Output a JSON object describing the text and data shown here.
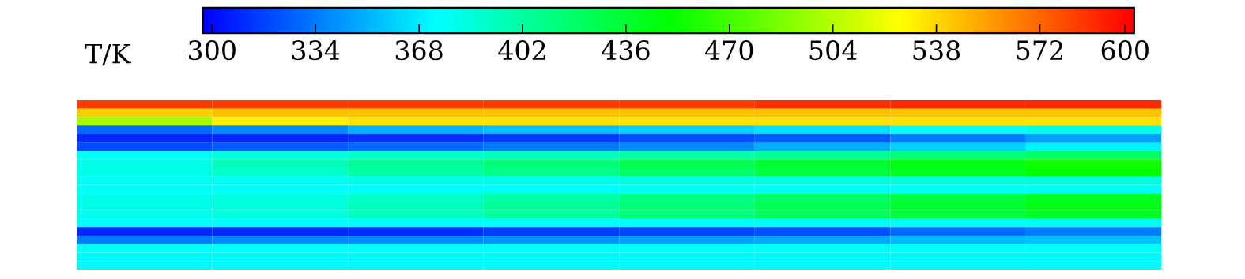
{
  "chart_data": {
    "type": "heatmap",
    "clabel": "T/K",
    "tick_labels": false,
    "categories": [
      null,
      null,
      null,
      null,
      null,
      null,
      null,
      null
    ],
    "y_categories": [
      null,
      null,
      null,
      null,
      null,
      null,
      null,
      null,
      null,
      null,
      null,
      null,
      null,
      null,
      null,
      null,
      null,
      null,
      null,
      null
    ],
    "cells": [
      [
        585,
        585,
        585,
        585,
        585,
        588,
        590,
        590
      ],
      [
        540,
        545,
        545,
        545,
        545,
        545,
        545,
        545
      ],
      [
        500,
        530,
        535,
        535,
        535,
        535,
        535,
        535
      ],
      [
        330,
        340,
        350,
        355,
        360,
        365,
        375,
        380
      ],
      [
        310,
        310,
        312,
        315,
        320,
        325,
        335,
        345
      ],
      [
        320,
        325,
        330,
        335,
        340,
        350,
        360,
        370
      ],
      [
        378,
        385,
        390,
        395,
        400,
        405,
        415,
        420
      ],
      [
        380,
        395,
        405,
        415,
        425,
        435,
        445,
        455
      ],
      [
        380,
        390,
        400,
        410,
        420,
        430,
        440,
        450
      ],
      [
        378,
        378,
        380,
        380,
        382,
        382,
        385,
        385
      ],
      [
        375,
        375,
        375,
        375,
        375,
        375,
        375,
        375
      ],
      [
        380,
        382,
        390,
        400,
        410,
        420,
        430,
        440
      ],
      [
        380,
        385,
        395,
        405,
        415,
        425,
        435,
        445
      ],
      [
        380,
        383,
        393,
        403,
        413,
        423,
        433,
        440
      ],
      [
        375,
        375,
        375,
        375,
        375,
        378,
        378,
        378
      ],
      [
        310,
        310,
        312,
        315,
        318,
        322,
        330,
        335
      ],
      [
        335,
        338,
        340,
        342,
        345,
        348,
        352,
        355
      ],
      [
        375,
        375,
        375,
        375,
        375,
        375,
        375,
        375
      ],
      [
        372,
        372,
        372,
        372,
        372,
        372,
        372,
        372
      ],
      [
        372,
        372,
        372,
        372,
        372,
        372,
        372,
        372
      ]
    ],
    "clim": [
      297,
      603
    ],
    "cticks": [
      300,
      334,
      368,
      402,
      436,
      470,
      504,
      538,
      572,
      600
    ]
  }
}
